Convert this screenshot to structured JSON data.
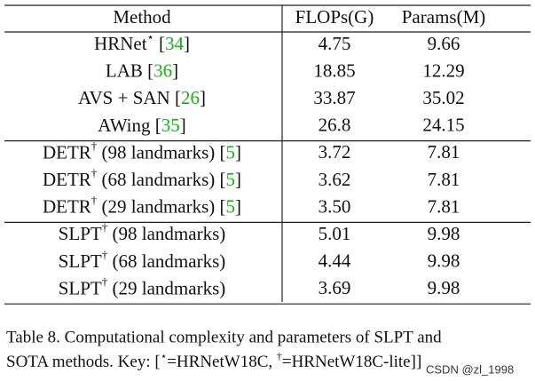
{
  "table": {
    "header": [
      "Method",
      "FLOPs(G)",
      "Params(M)"
    ],
    "sections": [
      {
        "rows": [
          {
            "method": [
              {
                "text": "HRNet"
              },
              {
                "text": "⋆",
                "sup": true
              },
              {
                "text": " ["
              },
              {
                "text": "34",
                "link": true
              },
              {
                "text": "]"
              }
            ],
            "flops": "4.75",
            "params": "9.66"
          },
          {
            "method": [
              {
                "text": "LAB ["
              },
              {
                "text": "36",
                "link": true
              },
              {
                "text": "]"
              }
            ],
            "flops": "18.85",
            "params": "12.29"
          },
          {
            "method": [
              {
                "text": "AVS + SAN ["
              },
              {
                "text": "26",
                "link": true
              },
              {
                "text": "]"
              }
            ],
            "flops": "33.87",
            "params": "35.02"
          },
          {
            "method": [
              {
                "text": "AWing ["
              },
              {
                "text": "35",
                "link": true
              },
              {
                "text": "]"
              }
            ],
            "flops": "26.8",
            "params": "24.15"
          }
        ]
      },
      {
        "rows": [
          {
            "method": [
              {
                "text": "DETR"
              },
              {
                "text": "†",
                "sup": true
              },
              {
                "text": " (98 landmarks) ["
              },
              {
                "text": "5",
                "link": true
              },
              {
                "text": "]"
              }
            ],
            "flops": "3.72",
            "params": "7.81"
          },
          {
            "method": [
              {
                "text": "DETR"
              },
              {
                "text": "†",
                "sup": true
              },
              {
                "text": " (68 landmarks) ["
              },
              {
                "text": "5",
                "link": true
              },
              {
                "text": "]"
              }
            ],
            "flops": "3.62",
            "params": "7.81"
          },
          {
            "method": [
              {
                "text": "DETR"
              },
              {
                "text": "†",
                "sup": true
              },
              {
                "text": " (29 landmarks) ["
              },
              {
                "text": "5",
                "link": true
              },
              {
                "text": "]"
              }
            ],
            "flops": "3.50",
            "params": "7.81"
          }
        ]
      },
      {
        "rows": [
          {
            "method": [
              {
                "text": "SLPT"
              },
              {
                "text": "†",
                "sup": true
              },
              {
                "text": " (98 landmarks)"
              }
            ],
            "flops": "5.01",
            "params": "9.98"
          },
          {
            "method": [
              {
                "text": "SLPT"
              },
              {
                "text": "†",
                "sup": true
              },
              {
                "text": " (68 landmarks)"
              }
            ],
            "flops": "4.44",
            "params": "9.98"
          },
          {
            "method": [
              {
                "text": "SLPT"
              },
              {
                "text": "†",
                "sup": true
              },
              {
                "text": " (29 landmarks)"
              }
            ],
            "flops": "3.69",
            "params": "9.98"
          }
        ]
      }
    ]
  },
  "caption": {
    "line1": "Table 8. Computational complexity and parameters of SLPT and",
    "line2": [
      {
        "text": "SOTA methods. Key: ["
      },
      {
        "text": "⋆",
        "sup": true
      },
      {
        "text": "=HRNetW18C, "
      },
      {
        "text": "†",
        "sup": true
      },
      {
        "text": "=HRNetW18C-lite]]"
      }
    ]
  },
  "watermark": "CSDN @zl_1998"
}
